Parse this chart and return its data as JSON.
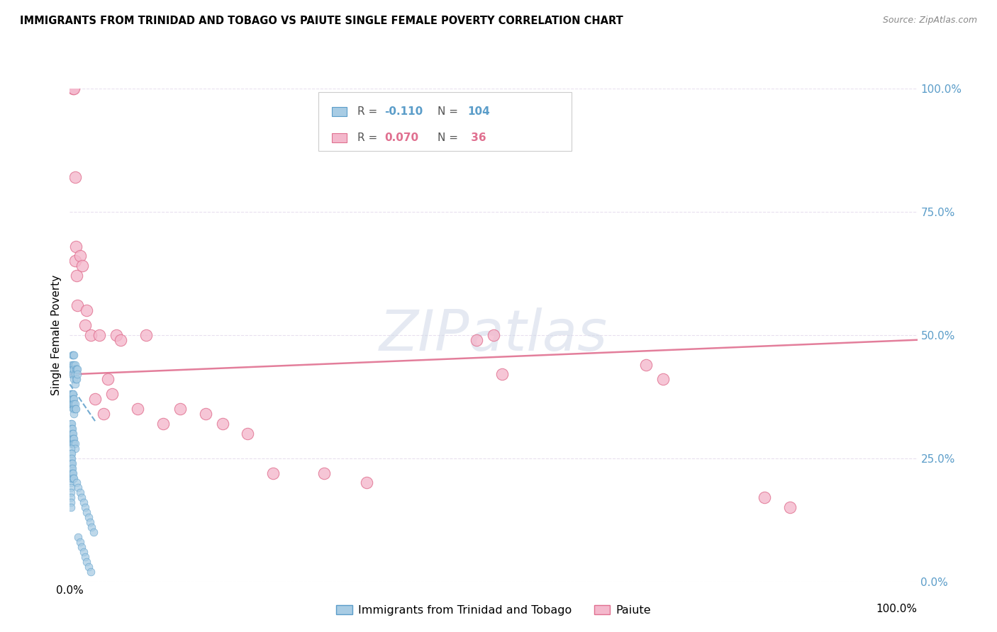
{
  "title": "IMMIGRANTS FROM TRINIDAD AND TOBAGO VS PAIUTE SINGLE FEMALE POVERTY CORRELATION CHART",
  "source": "Source: ZipAtlas.com",
  "ylabel": "Single Female Poverty",
  "ytick_labels": [
    "0.0%",
    "25.0%",
    "50.0%",
    "75.0%",
    "100.0%"
  ],
  "ytick_values": [
    0.0,
    0.25,
    0.5,
    0.75,
    1.0
  ],
  "xlim": [
    0,
    1.0
  ],
  "ylim": [
    0,
    1.0
  ],
  "blue_R": -0.11,
  "blue_N": 104,
  "pink_R": 0.07,
  "pink_N": 36,
  "legend_label_blue": "Immigrants from Trinidad and Tobago",
  "legend_label_pink": "Paiute",
  "blue_color": "#a8cce4",
  "pink_color": "#f4b8cc",
  "blue_edge_color": "#5b9dc9",
  "pink_edge_color": "#e07090",
  "blue_line_color": "#5b9dc9",
  "pink_line_color": "#e07090",
  "background_color": "#ffffff",
  "grid_color": "#e8e0ee",
  "blue_scatter_x": [
    0.002,
    0.002,
    0.003,
    0.003,
    0.004,
    0.004,
    0.004,
    0.005,
    0.005,
    0.005,
    0.005,
    0.006,
    0.006,
    0.006,
    0.007,
    0.007,
    0.008,
    0.008,
    0.009,
    0.009,
    0.001,
    0.001,
    0.001,
    0.002,
    0.002,
    0.002,
    0.003,
    0.003,
    0.003,
    0.004,
    0.004,
    0.004,
    0.004,
    0.005,
    0.005,
    0.005,
    0.005,
    0.006,
    0.006,
    0.007,
    0.001,
    0.001,
    0.001,
    0.001,
    0.002,
    0.002,
    0.002,
    0.002,
    0.002,
    0.003,
    0.003,
    0.003,
    0.003,
    0.004,
    0.004,
    0.004,
    0.005,
    0.005,
    0.006,
    0.006,
    0.001,
    0.001,
    0.001,
    0.001,
    0.001,
    0.001,
    0.001,
    0.001,
    0.001,
    0.001,
    0.001,
    0.001,
    0.001,
    0.002,
    0.002,
    0.002,
    0.002,
    0.002,
    0.002,
    0.003,
    0.003,
    0.003,
    0.004,
    0.004,
    0.005,
    0.008,
    0.01,
    0.012,
    0.014,
    0.016,
    0.018,
    0.02,
    0.022,
    0.024,
    0.026,
    0.028,
    0.01,
    0.012,
    0.014,
    0.016,
    0.018,
    0.02,
    0.022,
    0.025
  ],
  "blue_scatter_y": [
    0.44,
    0.42,
    0.46,
    0.43,
    0.46,
    0.44,
    0.42,
    0.46,
    0.44,
    0.43,
    0.41,
    0.44,
    0.42,
    0.4,
    0.43,
    0.41,
    0.43,
    0.41,
    0.43,
    0.42,
    0.38,
    0.37,
    0.36,
    0.38,
    0.37,
    0.36,
    0.38,
    0.37,
    0.36,
    0.38,
    0.37,
    0.36,
    0.35,
    0.37,
    0.36,
    0.35,
    0.34,
    0.36,
    0.35,
    0.35,
    0.32,
    0.31,
    0.3,
    0.29,
    0.32,
    0.31,
    0.3,
    0.29,
    0.28,
    0.31,
    0.3,
    0.29,
    0.28,
    0.3,
    0.29,
    0.28,
    0.29,
    0.28,
    0.28,
    0.27,
    0.27,
    0.26,
    0.25,
    0.24,
    0.23,
    0.22,
    0.21,
    0.2,
    0.19,
    0.18,
    0.17,
    0.16,
    0.15,
    0.26,
    0.25,
    0.24,
    0.23,
    0.22,
    0.21,
    0.24,
    0.23,
    0.22,
    0.22,
    0.21,
    0.21,
    0.2,
    0.19,
    0.18,
    0.17,
    0.16,
    0.15,
    0.14,
    0.13,
    0.12,
    0.11,
    0.1,
    0.09,
    0.08,
    0.07,
    0.06,
    0.05,
    0.04,
    0.03,
    0.02
  ],
  "pink_scatter_x": [
    0.004,
    0.005,
    0.006,
    0.006,
    0.007,
    0.008,
    0.009,
    0.012,
    0.015,
    0.018,
    0.02,
    0.025,
    0.03,
    0.035,
    0.04,
    0.045,
    0.05,
    0.055,
    0.06,
    0.08,
    0.09,
    0.11,
    0.13,
    0.16,
    0.18,
    0.21,
    0.24,
    0.3,
    0.35,
    0.48,
    0.5,
    0.51,
    0.68,
    0.7,
    0.82,
    0.85
  ],
  "pink_scatter_y": [
    1.0,
    1.0,
    0.82,
    0.65,
    0.68,
    0.62,
    0.56,
    0.66,
    0.64,
    0.52,
    0.55,
    0.5,
    0.37,
    0.5,
    0.34,
    0.41,
    0.38,
    0.5,
    0.49,
    0.35,
    0.5,
    0.32,
    0.35,
    0.34,
    0.32,
    0.3,
    0.22,
    0.22,
    0.2,
    0.49,
    0.5,
    0.42,
    0.44,
    0.41,
    0.17,
    0.15
  ]
}
